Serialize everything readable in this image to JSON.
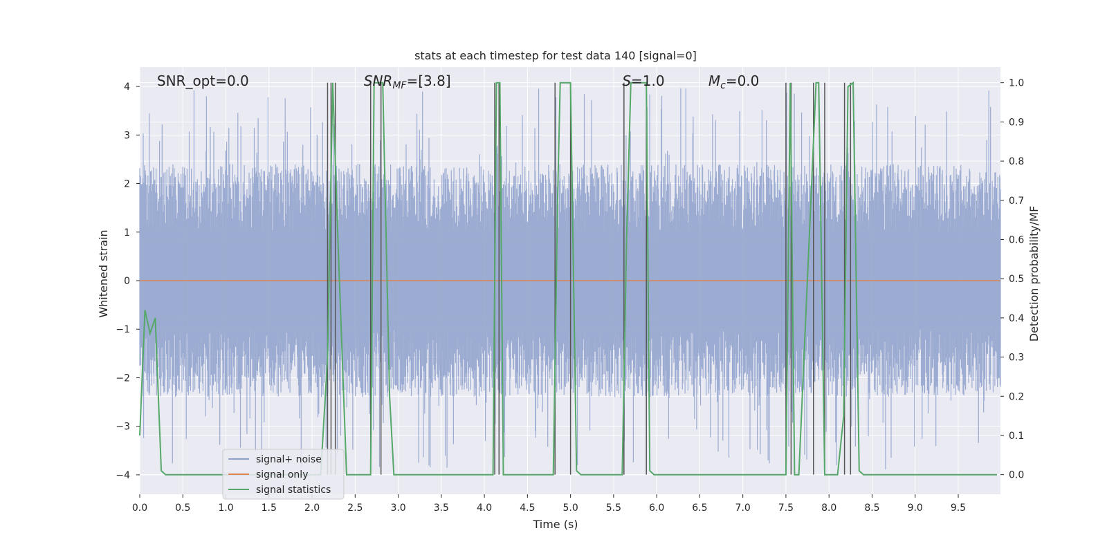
{
  "chart_data": {
    "type": "line",
    "title": "stats at each timestep for test data 140 [signal=0]",
    "xlabel": "Time (s)",
    "ylabel_left": "Whitened strain",
    "ylabel_right": "Detection probability/MF",
    "xlim": [
      0.0,
      9.99
    ],
    "ylim_left": [
      -4.4,
      4.4
    ],
    "ylim_right": [
      -0.05,
      1.04
    ],
    "grid": true,
    "legend_placement": "lower-left",
    "x_ticks": [
      "0.0",
      "0.5",
      "1.0",
      "1.5",
      "2.0",
      "2.5",
      "3.0",
      "3.5",
      "4.0",
      "4.5",
      "5.0",
      "5.5",
      "6.0",
      "6.5",
      "7.0",
      "7.5",
      "8.0",
      "8.5",
      "9.0",
      "9.5"
    ],
    "y_left_ticks": [
      "4",
      "3",
      "2",
      "1",
      "0",
      "−1",
      "−2",
      "−3",
      "−4"
    ],
    "y_right_ticks": [
      "1.0",
      "0.9",
      "0.8",
      "0.7",
      "0.6",
      "0.5",
      "0.4",
      "0.3",
      "0.2",
      "0.1",
      "0.0"
    ],
    "annotations": [
      {
        "label": "SNR_opt=0.0",
        "x": 0.2
      },
      {
        "label": "SNR_MF=[3.8]",
        "x": 2.6
      },
      {
        "label": "S=1.0",
        "x": 5.6
      },
      {
        "label": "M_c=0.0",
        "x": 6.6
      }
    ],
    "series": [
      {
        "name": "signal+ noise",
        "color": "#8da0cb",
        "kind": "noise",
        "envelope_upper": 2.4,
        "envelope_lower": -2.4,
        "peak_max": 4.0,
        "peak_min": -3.9
      },
      {
        "name": "signal only",
        "color": "#dd8452",
        "values_constant": 0.0
      },
      {
        "name": "signal statistics",
        "color": "#55a868",
        "x": [
          0.0,
          0.06,
          0.12,
          0.18,
          0.25,
          0.3,
          0.4,
          2.1,
          2.18,
          2.24,
          2.3,
          2.4,
          2.44,
          2.6,
          2.68,
          2.72,
          2.78,
          2.82,
          2.9,
          2.95,
          3.5,
          4.1,
          4.14,
          4.18,
          4.22,
          4.3,
          4.8,
          4.85,
          4.88,
          4.92,
          5.0,
          5.07,
          5.12,
          5.6,
          5.65,
          5.7,
          5.88,
          5.92,
          5.97,
          6.1,
          7.5,
          7.55,
          7.6,
          7.65,
          7.85,
          7.88,
          7.95,
          7.98,
          8.1,
          8.17,
          8.22,
          8.28,
          8.35,
          8.4,
          8.5,
          9.95
        ],
        "values": [
          0.1,
          0.42,
          0.36,
          0.4,
          0.01,
          0.0,
          0.0,
          0.0,
          0.3,
          1.0,
          0.6,
          0.0,
          0.0,
          0.0,
          0.0,
          1.0,
          1.0,
          1.0,
          0.2,
          0.0,
          0.0,
          0.0,
          1.0,
          1.0,
          0.0,
          0.0,
          0.0,
          0.7,
          1.0,
          1.0,
          1.0,
          0.01,
          0.0,
          0.0,
          0.6,
          1.0,
          1.0,
          0.01,
          0.0,
          0.0,
          0.0,
          1.0,
          0.0,
          0.0,
          1.0,
          1.0,
          0.0,
          0.0,
          0.0,
          0.15,
          0.99,
          1.0,
          0.01,
          0.0,
          0.0,
          0.0
        ]
      }
    ],
    "vertical_markers": [
      2.18,
      2.22,
      2.27,
      2.68,
      2.8,
      4.12,
      4.17,
      4.82,
      5.0,
      5.62,
      5.88,
      7.5,
      7.56,
      7.82,
      7.95,
      8.18,
      8.25
    ]
  }
}
